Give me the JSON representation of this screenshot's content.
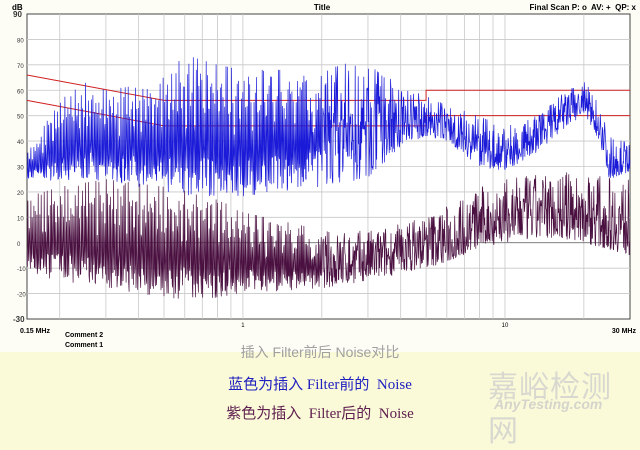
{
  "chart_data": {
    "type": "line",
    "title": "Title",
    "ylabel": "dB",
    "legend_text": "Final Scan P: o  AV: +  QP: x",
    "x_scale": "log",
    "xlim": [
      0.15,
      30
    ],
    "ylim": [
      -30,
      90
    ],
    "x_start_label": "0.15 MHz",
    "x_end_label": "30 MHz",
    "x_tick_labels": [
      {
        "v": 1,
        "t": "1"
      },
      {
        "v": 10,
        "t": "10"
      }
    ],
    "y_ticks": [
      90,
      80,
      70,
      60,
      50,
      40,
      30,
      20,
      10,
      0,
      -10,
      -20,
      -30
    ],
    "comments": [
      "Comment 2",
      "Comment 1"
    ],
    "grid": true,
    "limit_lines": [
      {
        "color": "#d02020",
        "points": [
          [
            0.15,
            66
          ],
          [
            0.5,
            56
          ],
          [
            5,
            56
          ],
          [
            5,
            60
          ],
          [
            30,
            60
          ]
        ]
      },
      {
        "color": "#d02020",
        "points": [
          [
            0.15,
            56
          ],
          [
            0.5,
            46
          ],
          [
            5,
            46
          ],
          [
            5,
            50
          ],
          [
            30,
            50
          ]
        ]
      }
    ],
    "series": [
      {
        "color": "#1a1ad8",
        "band_points": [
          [
            0.15,
            25,
            35
          ],
          [
            0.2,
            24,
            56
          ],
          [
            0.25,
            25,
            63
          ],
          [
            0.3,
            24,
            60
          ],
          [
            0.4,
            22,
            62
          ],
          [
            0.5,
            20,
            65
          ],
          [
            0.6,
            18,
            74
          ],
          [
            0.8,
            18,
            70
          ],
          [
            1,
            18,
            68
          ],
          [
            1.5,
            20,
            68
          ],
          [
            2,
            22,
            72
          ],
          [
            3,
            25,
            70
          ],
          [
            4,
            38,
            62
          ],
          [
            5,
            42,
            58
          ],
          [
            6,
            40,
            55
          ],
          [
            8,
            30,
            50
          ],
          [
            10,
            28,
            46
          ],
          [
            13,
            35,
            50
          ],
          [
            17,
            45,
            60
          ],
          [
            20,
            50,
            64
          ],
          [
            23,
            40,
            55
          ],
          [
            25,
            25,
            42
          ],
          [
            30,
            28,
            40
          ]
        ]
      },
      {
        "color": "#4a1040",
        "band_points": [
          [
            0.15,
            -12,
            18
          ],
          [
            0.2,
            -15,
            22
          ],
          [
            0.3,
            -18,
            25
          ],
          [
            0.5,
            -22,
            22
          ],
          [
            0.8,
            -22,
            18
          ],
          [
            1,
            -20,
            12
          ],
          [
            2,
            -18,
            5
          ],
          [
            3,
            -15,
            5
          ],
          [
            4,
            -12,
            8
          ],
          [
            6,
            -8,
            15
          ],
          [
            8,
            -2,
            22
          ],
          [
            10,
            0,
            25
          ],
          [
            15,
            2,
            28
          ],
          [
            20,
            0,
            28
          ],
          [
            30,
            -5,
            25
          ]
        ]
      }
    ]
  },
  "captions": {
    "line1": "插入 Filter前后 Noise对比",
    "line2": "蓝色为插入 Filter前的  Noise",
    "line3": "紫色为插入  Filter后的  Noise"
  },
  "watermark": {
    "cn": "嘉峪检测网",
    "en": "AnyTesting.com"
  }
}
